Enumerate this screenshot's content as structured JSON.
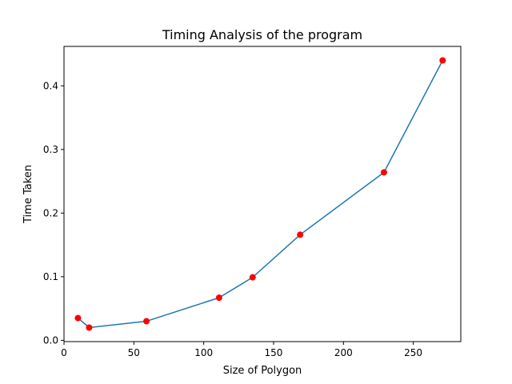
{
  "chart_data": {
    "type": "line",
    "title": "Timing Analysis of the program",
    "xlabel": "Size of Polygon",
    "ylabel": "Time Taken",
    "xlim": [
      0,
      284
    ],
    "ylim": [
      -0.002,
      0.462
    ],
    "x_ticks": [
      {
        "value": 0,
        "label": "0"
      },
      {
        "value": 50,
        "label": "50"
      },
      {
        "value": 100,
        "label": "100"
      },
      {
        "value": 150,
        "label": "150"
      },
      {
        "value": 200,
        "label": "200"
      },
      {
        "value": 250,
        "label": "250"
      }
    ],
    "y_ticks": [
      {
        "value": 0.0,
        "label": "0.0"
      },
      {
        "value": 0.1,
        "label": "0.1"
      },
      {
        "value": 0.2,
        "label": "0.2"
      },
      {
        "value": 0.3,
        "label": "0.3"
      },
      {
        "value": 0.4,
        "label": "0.4"
      }
    ],
    "grid": false,
    "series": [
      {
        "x": [
          10,
          18,
          59,
          111,
          135,
          169,
          229,
          271
        ],
        "y": [
          0.035,
          0.02,
          0.03,
          0.067,
          0.099,
          0.166,
          0.264,
          0.44
        ],
        "line_color": "#1f77b4",
        "marker_color": "#ff0000"
      }
    ]
  }
}
